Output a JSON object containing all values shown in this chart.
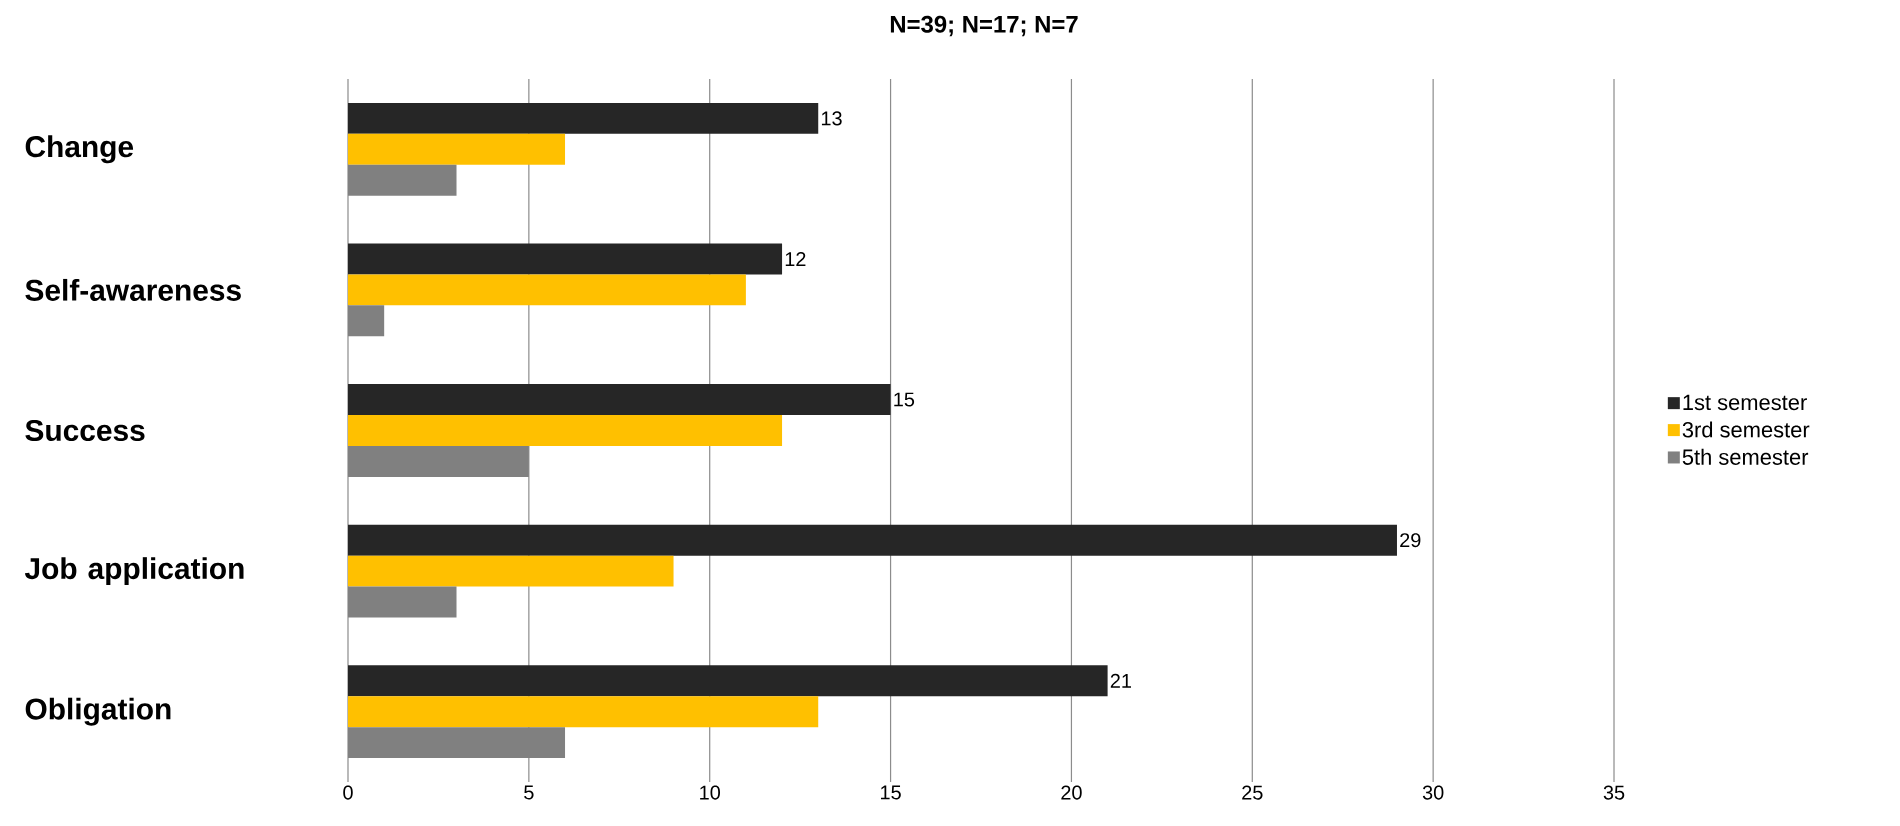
{
  "chart_data": {
    "type": "bar",
    "orientation": "horizontal",
    "title": "N=39; N=17; N=7",
    "categories": [
      "Change",
      "Self-awareness",
      "Success",
      "Job application",
      "Obligation"
    ],
    "series": [
      {
        "name": "1st semester",
        "color": "#262626",
        "values": [
          13,
          12,
          15,
          29,
          21
        ],
        "value_labels": [
          "13",
          "12",
          "15",
          "29",
          "21"
        ]
      },
      {
        "name": "3rd semester",
        "color": "#ffc000",
        "values": [
          6,
          11,
          12,
          9,
          13
        ]
      },
      {
        "name": "5th semester",
        "color": "#808080",
        "values": [
          3,
          1,
          5,
          3,
          6
        ]
      }
    ],
    "xlim": [
      0,
      35
    ],
    "xticks": [
      0,
      5,
      10,
      15,
      20,
      25,
      30,
      35
    ],
    "grid": "x",
    "legend": "right"
  }
}
